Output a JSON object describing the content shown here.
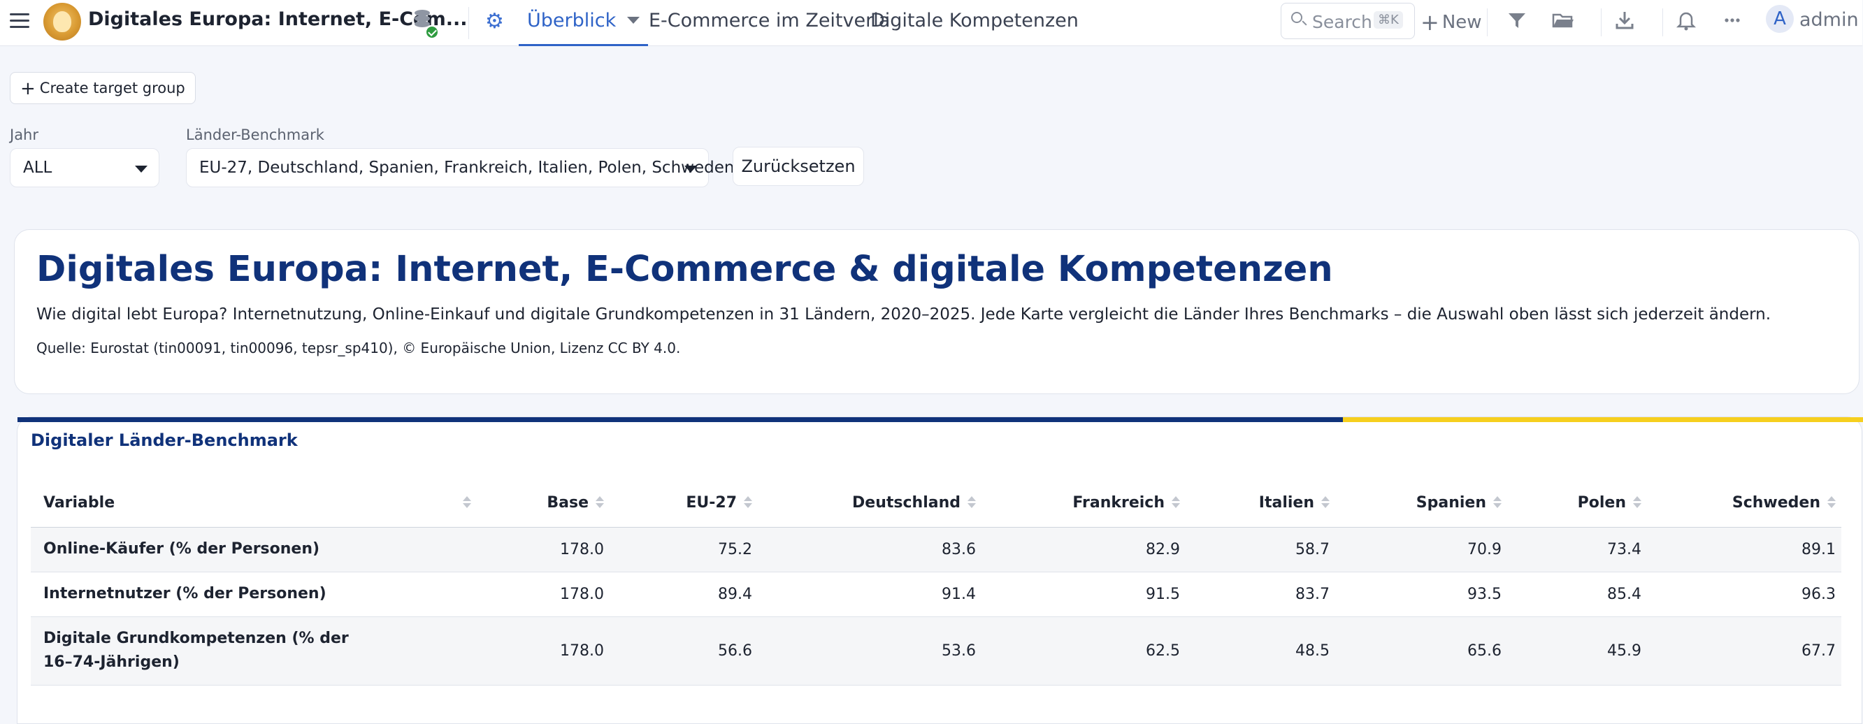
{
  "topbar": {
    "app_title": "Digitales Europa: Internet, E-Com...",
    "tabs": [
      {
        "label": "Überblick"
      },
      {
        "label": "E-Commerce im Zeitverla"
      },
      {
        "label": "Digitale Kompetenzen"
      }
    ],
    "search": {
      "placeholder": "Search",
      "shortcut": "⌘K"
    },
    "new_label": "New",
    "user": {
      "initial": "A",
      "name": "admin"
    },
    "icons": [
      "menu-icon",
      "app-logo",
      "database-icon",
      "gear-icon",
      "search-icon",
      "filter-icon",
      "folder-icon",
      "download-icon",
      "bell-icon",
      "more-icon"
    ]
  },
  "toolbar": {
    "create_target_group": "Create target group"
  },
  "filters": {
    "year": {
      "label": "Jahr",
      "value": "ALL"
    },
    "benchmark": {
      "label": "Länder-Benchmark",
      "value": "EU-27, Deutschland, Spanien, Frankreich, Italien, Polen, Schweden"
    },
    "reset_label": "Zurücksetzen"
  },
  "header": {
    "title": "Digitales Europa: Internet, E-Commerce & digitale Kompetenzen",
    "description": "Wie digital lebt Europa? Internetnutzung, Online-Einkauf und digitale Grundkompetenzen in 31 Ländern, 2020–2025. Jede Karte vergleicht die Länder Ihres Benchmarks – die Auswahl oben lässt sich jederzeit ändern.",
    "source": "Quelle: Eurostat (tin00091, tin00096, tepsr_sp410), © Europäische Union, Lizenz CC BY 4.0."
  },
  "benchmark": {
    "title": "Digitaler Länder-Benchmark",
    "columns": [
      "Variable",
      "Base",
      "EU-27",
      "Deutschland",
      "Frankreich",
      "Italien",
      "Spanien",
      "Polen",
      "Schweden"
    ],
    "rows": [
      {
        "variable": "Online-Käufer (% der Personen)",
        "values": [
          "178.0",
          "75.2",
          "83.6",
          "82.9",
          "58.7",
          "70.9",
          "73.4",
          "89.1"
        ]
      },
      {
        "variable": "Internetnutzer (% der Personen)",
        "values": [
          "178.0",
          "89.4",
          "91.4",
          "91.5",
          "83.7",
          "93.5",
          "85.4",
          "96.3"
        ]
      },
      {
        "variable": "Digitale Grundkompetenzen (% der 16–74-Jährigen)",
        "variable_lines": [
          "Digitale Grundkompetenzen (% der",
          "16–74-Jährigen)"
        ],
        "values": [
          "178.0",
          "56.6",
          "53.6",
          "62.5",
          "48.5",
          "65.6",
          "45.9",
          "67.7"
        ]
      }
    ]
  },
  "colors": {
    "accent": "#2f63c7",
    "title_navy": "#10327a",
    "flag_yellow": "#f6cf1e"
  }
}
